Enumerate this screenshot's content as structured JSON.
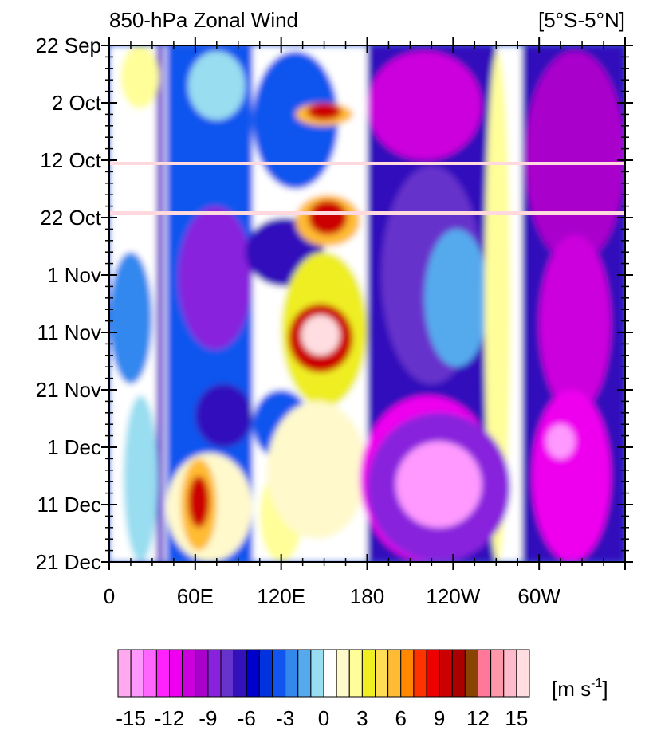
{
  "chart_data": {
    "type": "heatmap",
    "title": "850-hPa Zonal Wind",
    "region_label": "[5°S-5°N]",
    "x_axis": {
      "ticks": [
        {
          "lon": 0,
          "label": "0"
        },
        {
          "lon": 60,
          "label": "60E"
        },
        {
          "lon": 120,
          "label": "120E"
        },
        {
          "lon": 180,
          "label": "180"
        },
        {
          "lon": 240,
          "label": "120W"
        },
        {
          "lon": 300,
          "label": "60W"
        }
      ],
      "range": [
        0,
        360
      ]
    },
    "y_axis": {
      "ticks": [
        {
          "date": "2019-09-22",
          "label": "22 Sep"
        },
        {
          "date": "2019-10-02",
          "label": "2 Oct"
        },
        {
          "date": "2019-10-12",
          "label": "12 Oct"
        },
        {
          "date": "2019-10-22",
          "label": "22 Oct"
        },
        {
          "date": "2019-11-01",
          "label": "1 Nov"
        },
        {
          "date": "2019-11-11",
          "label": "11 Nov"
        },
        {
          "date": "2019-11-21",
          "label": "21 Nov"
        },
        {
          "date": "2019-12-01",
          "label": "1 Dec"
        },
        {
          "date": "2019-12-11",
          "label": "11 Dec"
        },
        {
          "date": "2019-12-21",
          "label": "21 Dec"
        }
      ],
      "range": [
        "2019-09-22",
        "2019-12-21"
      ],
      "direction": "time increases downward"
    },
    "colorbar": {
      "min": -16,
      "max": 16,
      "labels": [
        "-15",
        "-12",
        "-9",
        "-6",
        "-3",
        "0",
        "3",
        "6",
        "9",
        "12",
        "15"
      ],
      "label_values": [
        -15,
        -12,
        -9,
        -6,
        -3,
        0,
        3,
        6,
        9,
        12,
        15
      ],
      "colors": [
        "#ffaaee",
        "#ff99ff",
        "#ff66ff",
        "#ff22ff",
        "#ee00ee",
        "#cc00dd",
        "#aa00cc",
        "#8822dd",
        "#6633cc",
        "#3311bb",
        "#0000cc",
        "#0033dd",
        "#1155ee",
        "#3388ee",
        "#55aaee",
        "#99ddf0",
        "#ffffff",
        "#fff9cc",
        "#fffe99",
        "#eeee22",
        "#ffdd55",
        "#ffbb33",
        "#ff8800",
        "#ff3300",
        "#ee0000",
        "#cc0000",
        "#aa0000",
        "#884400",
        "#ff7799",
        "#ff99aa",
        "#ffbbcc",
        "#ffdde0"
      ],
      "unit": "[m s",
      "unit_exp": "-1",
      "unit_close": "]"
    },
    "features": [
      {
        "desc": "westerly burst",
        "lon_range": [
          130,
          170
        ],
        "dates": [
          "2019-10-02",
          "2019-10-06"
        ],
        "max_value": 9
      },
      {
        "desc": "westerly burst",
        "lon_range": [
          130,
          175
        ],
        "dates": [
          "2019-10-18",
          "2019-10-27"
        ],
        "max_value": 9
      },
      {
        "desc": "westerly burst",
        "lon_range": [
          125,
          170
        ],
        "dates": [
          "2019-11-06",
          "2019-11-18"
        ],
        "max_value": 15
      },
      {
        "desc": "westerly burst",
        "lon_range": [
          50,
          75
        ],
        "dates": [
          "2019-12-03",
          "2019-12-19"
        ],
        "max_value": 9
      },
      {
        "desc": "easterly maximum",
        "lon_range": [
          180,
          280
        ],
        "dates": [
          "2019-11-25",
          "2019-12-21"
        ],
        "min_value": -15
      }
    ]
  }
}
